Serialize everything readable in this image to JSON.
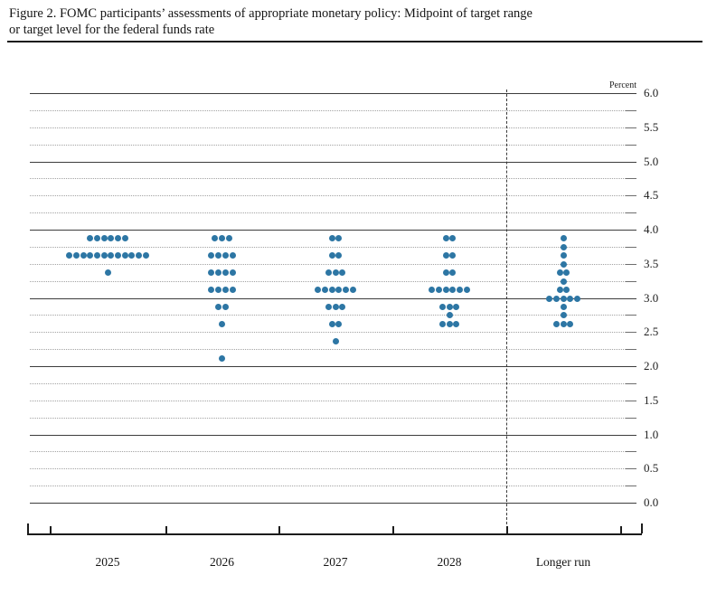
{
  "figure": {
    "title_line1": "Figure 2. FOMC participants’ assessments of appropriate monetary policy: Midpoint of target range",
    "title_line2": "or target level for the federal funds rate"
  },
  "chart_data": {
    "type": "scatter",
    "subtype": "fomc-dot-plot",
    "title": "FOMC participants’ assessments of appropriate monetary policy: Midpoint of target range or target level for the federal funds rate",
    "ylabel": "Percent",
    "xlabel": "",
    "categories": [
      "2025",
      "2026",
      "2027",
      "2028",
      "Longer run"
    ],
    "y_axis": {
      "min": 0.0,
      "max": 6.0,
      "gridline_step": 0.25,
      "label_step": 0.5,
      "solid_line_step": 1.0,
      "tick_labels": [
        "6.0",
        "5.5",
        "5.0",
        "4.5",
        "4.0",
        "3.5",
        "3.0",
        "2.5",
        "2.0",
        "1.5",
        "1.0",
        "0.5",
        "0.0"
      ]
    },
    "legend": "none",
    "grid": "on",
    "separator_after_category": "2028",
    "dot_color": "#2d76a4",
    "series": [
      {
        "name": "2025",
        "dots": [
          {
            "rate": 3.875,
            "count": 6
          },
          {
            "rate": 3.625,
            "count": 12
          },
          {
            "rate": 3.375,
            "count": 1
          }
        ]
      },
      {
        "name": "2026",
        "dots": [
          {
            "rate": 3.875,
            "count": 3
          },
          {
            "rate": 3.625,
            "count": 4
          },
          {
            "rate": 3.375,
            "count": 4
          },
          {
            "rate": 3.125,
            "count": 4
          },
          {
            "rate": 2.875,
            "count": 2
          },
          {
            "rate": 2.625,
            "count": 1
          },
          {
            "rate": 2.125,
            "count": 1
          }
        ]
      },
      {
        "name": "2027",
        "dots": [
          {
            "rate": 3.875,
            "count": 2
          },
          {
            "rate": 3.625,
            "count": 2
          },
          {
            "rate": 3.375,
            "count": 3
          },
          {
            "rate": 3.125,
            "count": 6
          },
          {
            "rate": 2.875,
            "count": 3
          },
          {
            "rate": 2.625,
            "count": 2
          },
          {
            "rate": 2.375,
            "count": 1
          }
        ]
      },
      {
        "name": "2028",
        "dots": [
          {
            "rate": 3.875,
            "count": 2
          },
          {
            "rate": 3.625,
            "count": 2
          },
          {
            "rate": 3.375,
            "count": 2
          },
          {
            "rate": 3.125,
            "count": 6
          },
          {
            "rate": 2.875,
            "count": 3
          },
          {
            "rate": 2.75,
            "count": 1
          },
          {
            "rate": 2.625,
            "count": 3
          }
        ]
      },
      {
        "name": "Longer run",
        "dots": [
          {
            "rate": 3.875,
            "count": 1
          },
          {
            "rate": 3.75,
            "count": 1
          },
          {
            "rate": 3.625,
            "count": 1
          },
          {
            "rate": 3.5,
            "count": 1
          },
          {
            "rate": 3.375,
            "count": 2
          },
          {
            "rate": 3.25,
            "count": 1
          },
          {
            "rate": 3.125,
            "count": 2
          },
          {
            "rate": 3.0,
            "count": 5
          },
          {
            "rate": 2.875,
            "count": 1
          },
          {
            "rate": 2.75,
            "count": 1
          },
          {
            "rate": 2.625,
            "count": 3
          }
        ]
      }
    ]
  }
}
